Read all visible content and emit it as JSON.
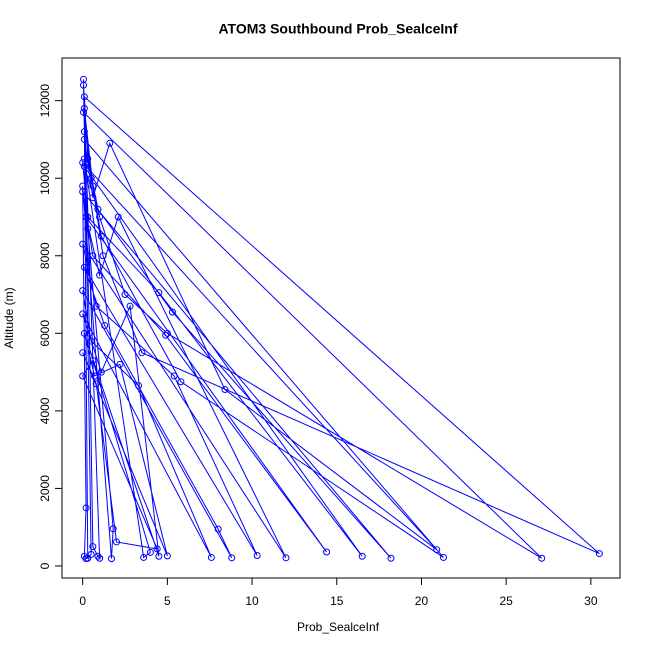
{
  "chart_data": {
    "type": "line",
    "title": "ATOM3 Southbound Prob_SealceInf",
    "x_label": "Prob_SealceInf",
    "y_label": "Altitude (m)",
    "xlim": [
      -1.22,
      31.72
    ],
    "xticks": [
      0,
      5,
      10,
      15,
      20,
      25,
      30
    ],
    "ylim": [
      -310,
      13100
    ],
    "yticks": [
      0,
      2000,
      4000,
      6000,
      8000,
      10000,
      12000
    ],
    "series": [
      {
        "color": "#0000ff",
        "x": [
          0.05,
          0.1,
          0.6,
          1.2,
          3.5,
          30.5,
          0.1,
          0.3,
          1.0,
          2.5,
          5.0,
          27.1,
          0.05,
          0.5,
          1.1,
          5.8,
          21.3,
          0.1,
          0.6,
          1.6,
          8.4,
          20.9,
          0.0,
          0.3,
          4.5,
          16.5,
          0.1,
          0.9,
          5.3,
          18.2,
          0.0,
          0.6,
          4.9,
          14.4,
          0.2,
          1.0,
          2.1,
          12.0,
          0.0,
          0.8,
          5.4,
          10.3,
          0.1,
          1.3,
          8.0,
          8.8,
          0.0,
          0.5,
          3.3,
          7.6,
          0.0,
          1.1,
          2.8,
          4.5,
          0.1,
          0.7,
          2.2,
          5.0,
          0.0,
          0.8,
          2.0,
          4.4,
          0.0,
          0.6,
          4.0,
          3.6,
          0.1,
          0.3,
          1.8,
          1.7,
          0.0,
          0.2,
          0.1,
          0.3,
          0.1,
          0.4,
          0.6,
          0.9,
          1.0,
          0.05,
          0.2,
          0.5,
          0.2
        ],
        "values": [
          12550,
          11800,
          9800,
          8000,
          5500,
          320,
          12100,
          10500,
          9000,
          7000,
          6000,
          200,
          11700,
          10000,
          8500,
          4750,
          220,
          11000,
          9500,
          10900,
          4550,
          420,
          10400,
          9000,
          7050,
          250,
          10300,
          9200,
          6550,
          200,
          9650,
          8000,
          5950,
          360,
          9000,
          7500,
          9000,
          210,
          8300,
          6700,
          4900,
          270,
          7700,
          6200,
          950,
          210,
          7100,
          5800,
          4650,
          220,
          6500,
          5000,
          6700,
          250,
          6000,
          4900,
          5200,
          260,
          5500,
          4700,
          620,
          440,
          4900,
          5300,
          350,
          220,
          10500,
          8700,
          960,
          190,
          9800,
          1500,
          250,
          200,
          11200,
          6000,
          500,
          250,
          200,
          12400,
          9000,
          300,
          190
        ]
      }
    ]
  }
}
